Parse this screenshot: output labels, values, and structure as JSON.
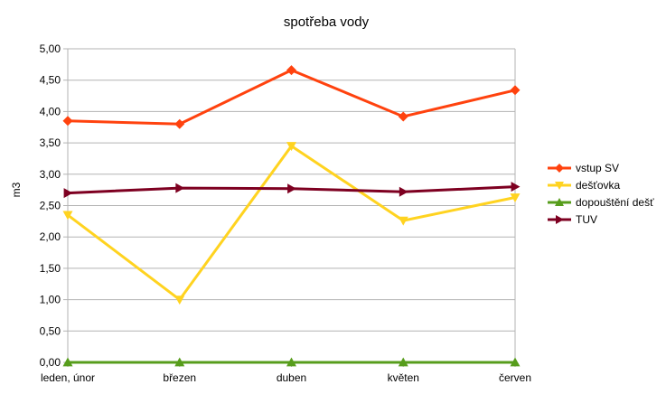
{
  "chart_data": {
    "type": "line",
    "title": "spotřeba vody",
    "xlabel": "",
    "ylabel": "m3",
    "categories": [
      "leden, únor",
      "březen",
      "duben",
      "květen",
      "červen"
    ],
    "ylim": [
      0,
      5
    ],
    "ytick_values": [
      0,
      0.5,
      1,
      1.5,
      2,
      2.5,
      3,
      3.5,
      4,
      4.5,
      5
    ],
    "ytick_labels": [
      "0,00",
      "0,50",
      "1,00",
      "1,50",
      "2,00",
      "2,50",
      "3,00",
      "3,50",
      "4,00",
      "4,50",
      "5,00"
    ],
    "grid": true,
    "legend_position": "right",
    "series": [
      {
        "name": "vstup SV",
        "color": "#ff420e",
        "marker": "diamond",
        "values": [
          3.85,
          3.8,
          4.66,
          3.92,
          4.34
        ]
      },
      {
        "name": "dešťovka",
        "color": "#ffd320",
        "marker": "triangle-down",
        "values": [
          2.35,
          1.0,
          3.45,
          2.26,
          2.63
        ]
      },
      {
        "name": "dopouštění dešť",
        "color": "#579d1c",
        "marker": "triangle-up",
        "values": [
          0,
          0,
          0,
          0,
          0
        ]
      },
      {
        "name": "TUV",
        "color": "#7e0021",
        "marker": "triangle-right",
        "values": [
          2.7,
          2.78,
          2.77,
          2.72,
          2.8
        ]
      }
    ]
  }
}
